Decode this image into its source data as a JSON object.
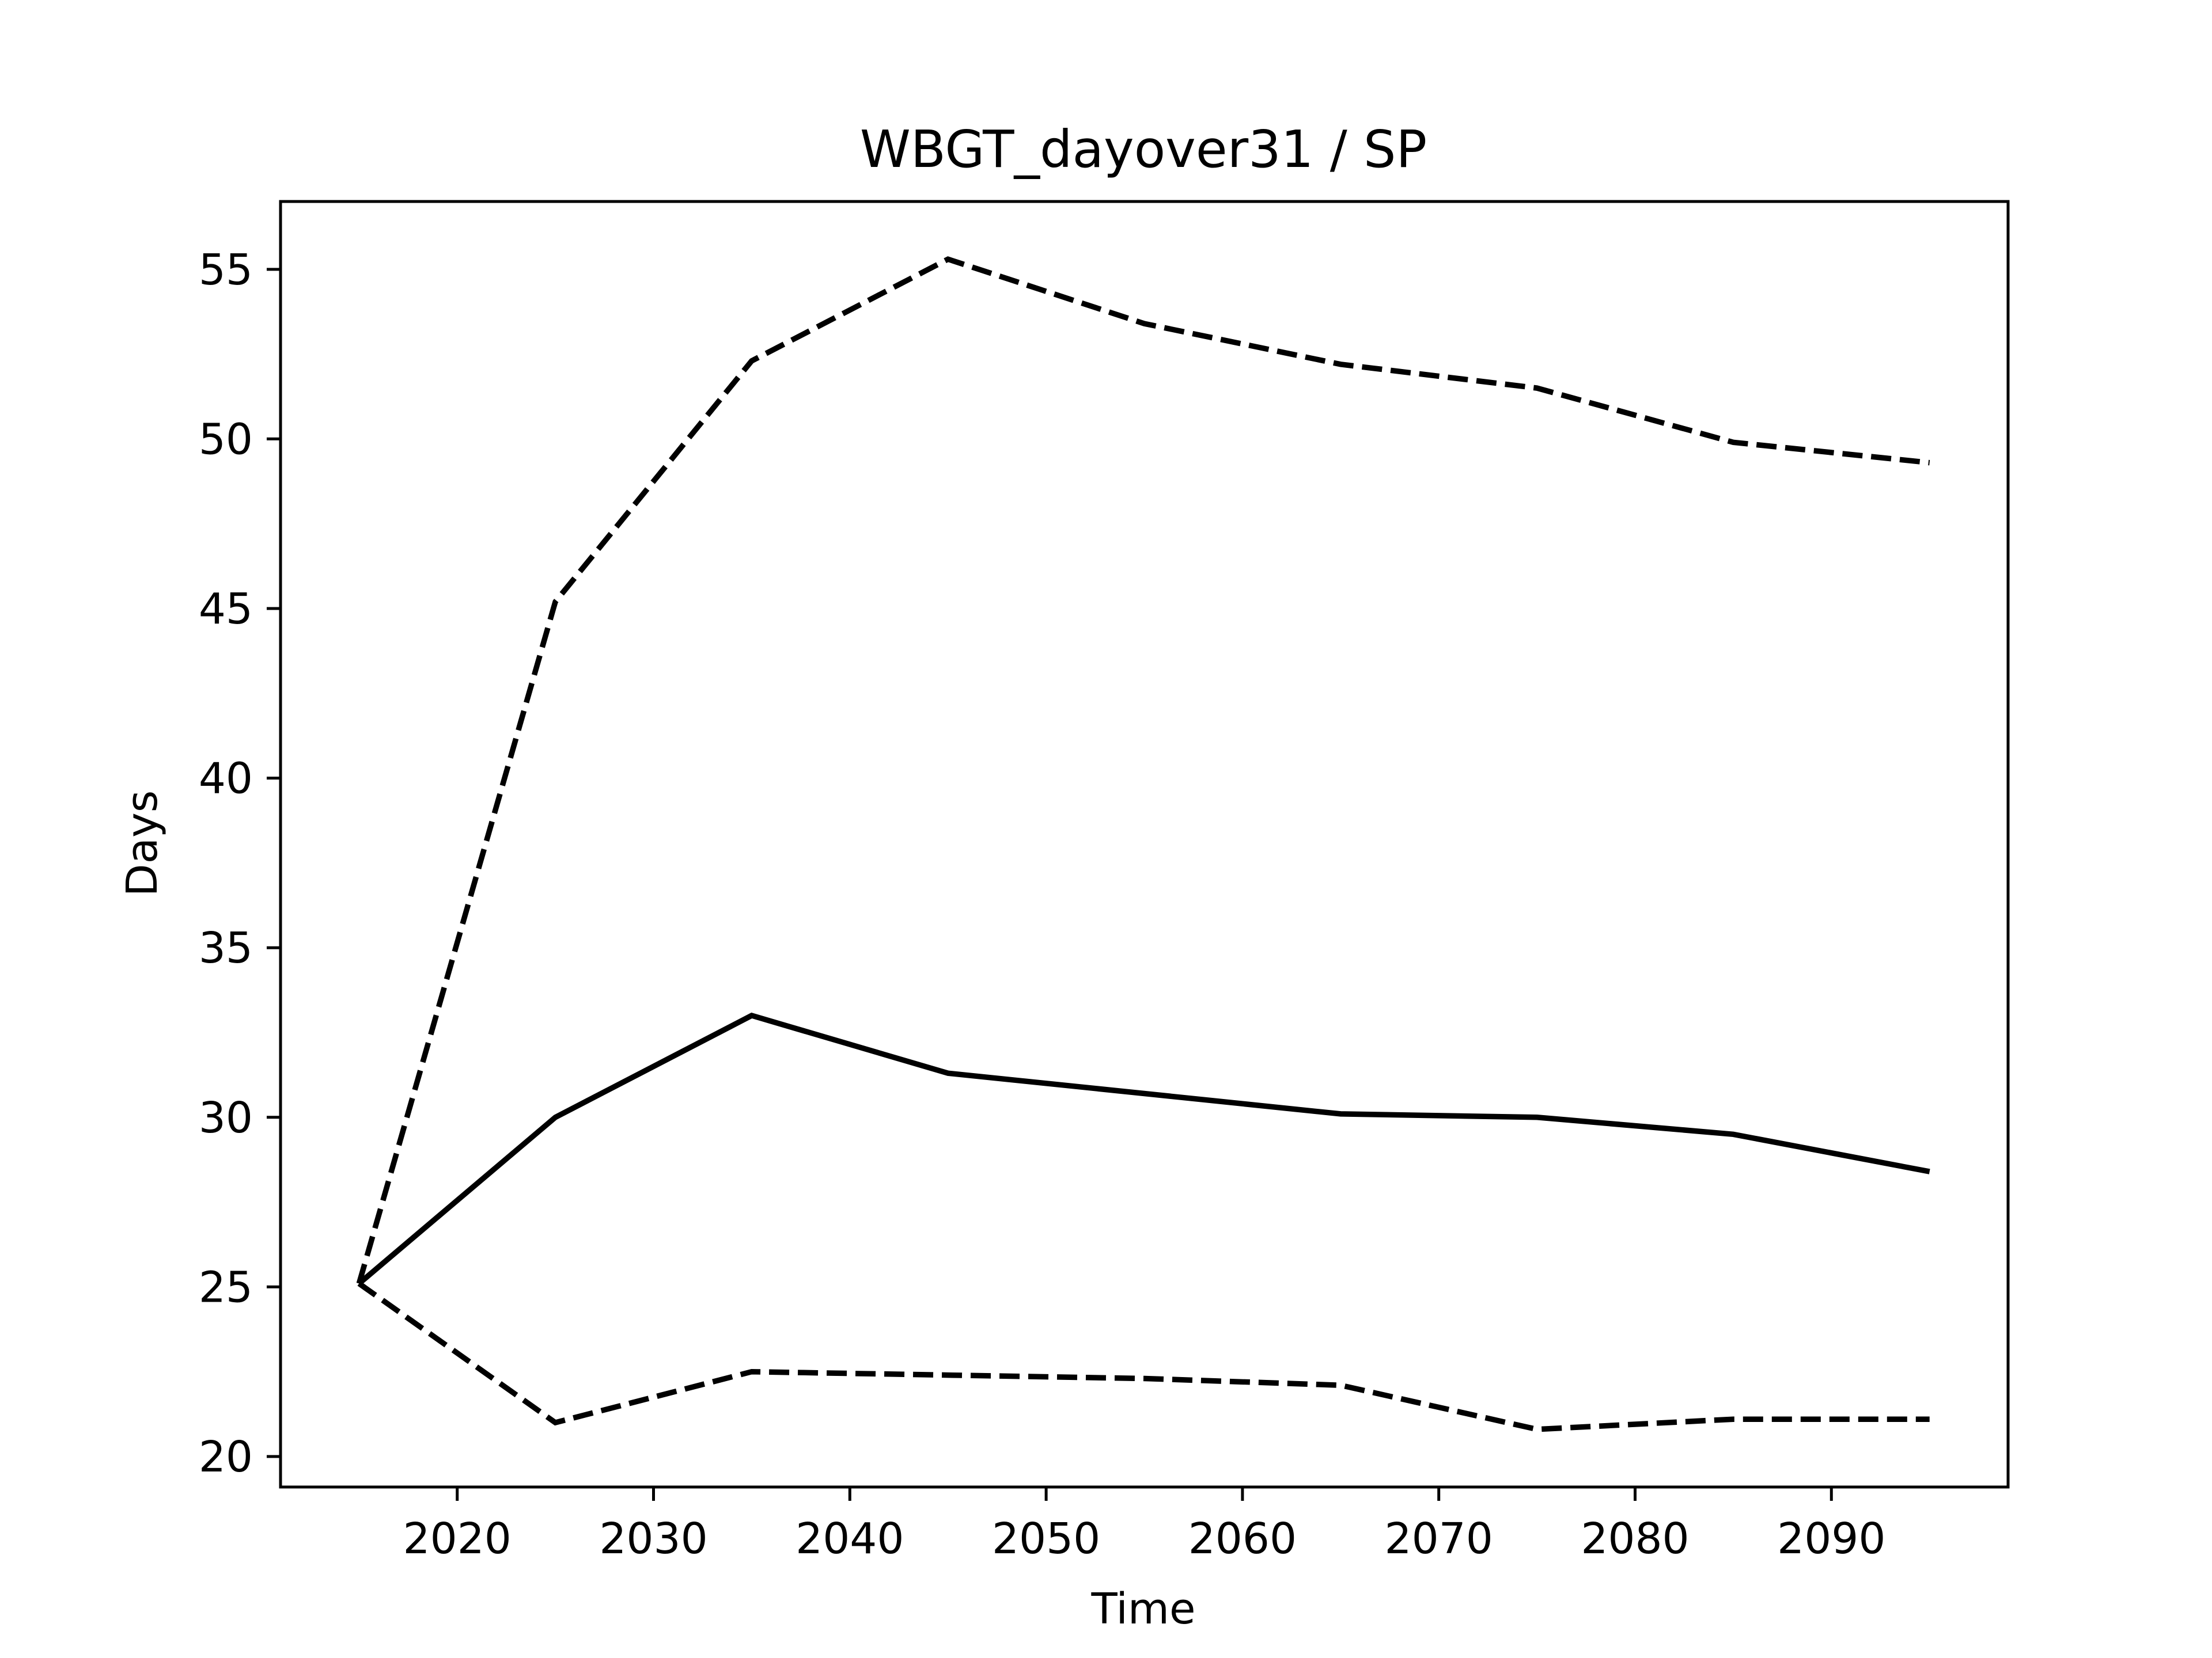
{
  "chart_data": {
    "type": "line",
    "title": "WBGT_dayover31 / SP",
    "xlabel": "Time",
    "ylabel": "Days",
    "xlim": [
      2011,
      2099
    ],
    "ylim": [
      19.1,
      57.0
    ],
    "xticks": [
      2020,
      2030,
      2040,
      2050,
      2060,
      2070,
      2080,
      2090
    ],
    "yticks": [
      20,
      25,
      30,
      35,
      40,
      45,
      50,
      55
    ],
    "grid": false,
    "legend": "none",
    "x": [
      2015,
      2025,
      2035,
      2045,
      2055,
      2065,
      2075,
      2085,
      2095
    ],
    "series": [
      {
        "style": "solid",
        "color": "#000000",
        "values": [
          25.1,
          30.0,
          33.0,
          31.3,
          30.7,
          30.1,
          30.0,
          29.5,
          28.4
        ]
      },
      {
        "style": "dashed",
        "color": "#000000",
        "values": [
          25.1,
          45.2,
          52.3,
          55.3,
          53.4,
          52.2,
          51.5,
          49.9,
          49.3
        ]
      },
      {
        "style": "dashed",
        "color": "#000000",
        "values": [
          25.1,
          21.0,
          22.5,
          22.4,
          22.3,
          22.1,
          20.8,
          21.1,
          21.1
        ]
      }
    ]
  }
}
